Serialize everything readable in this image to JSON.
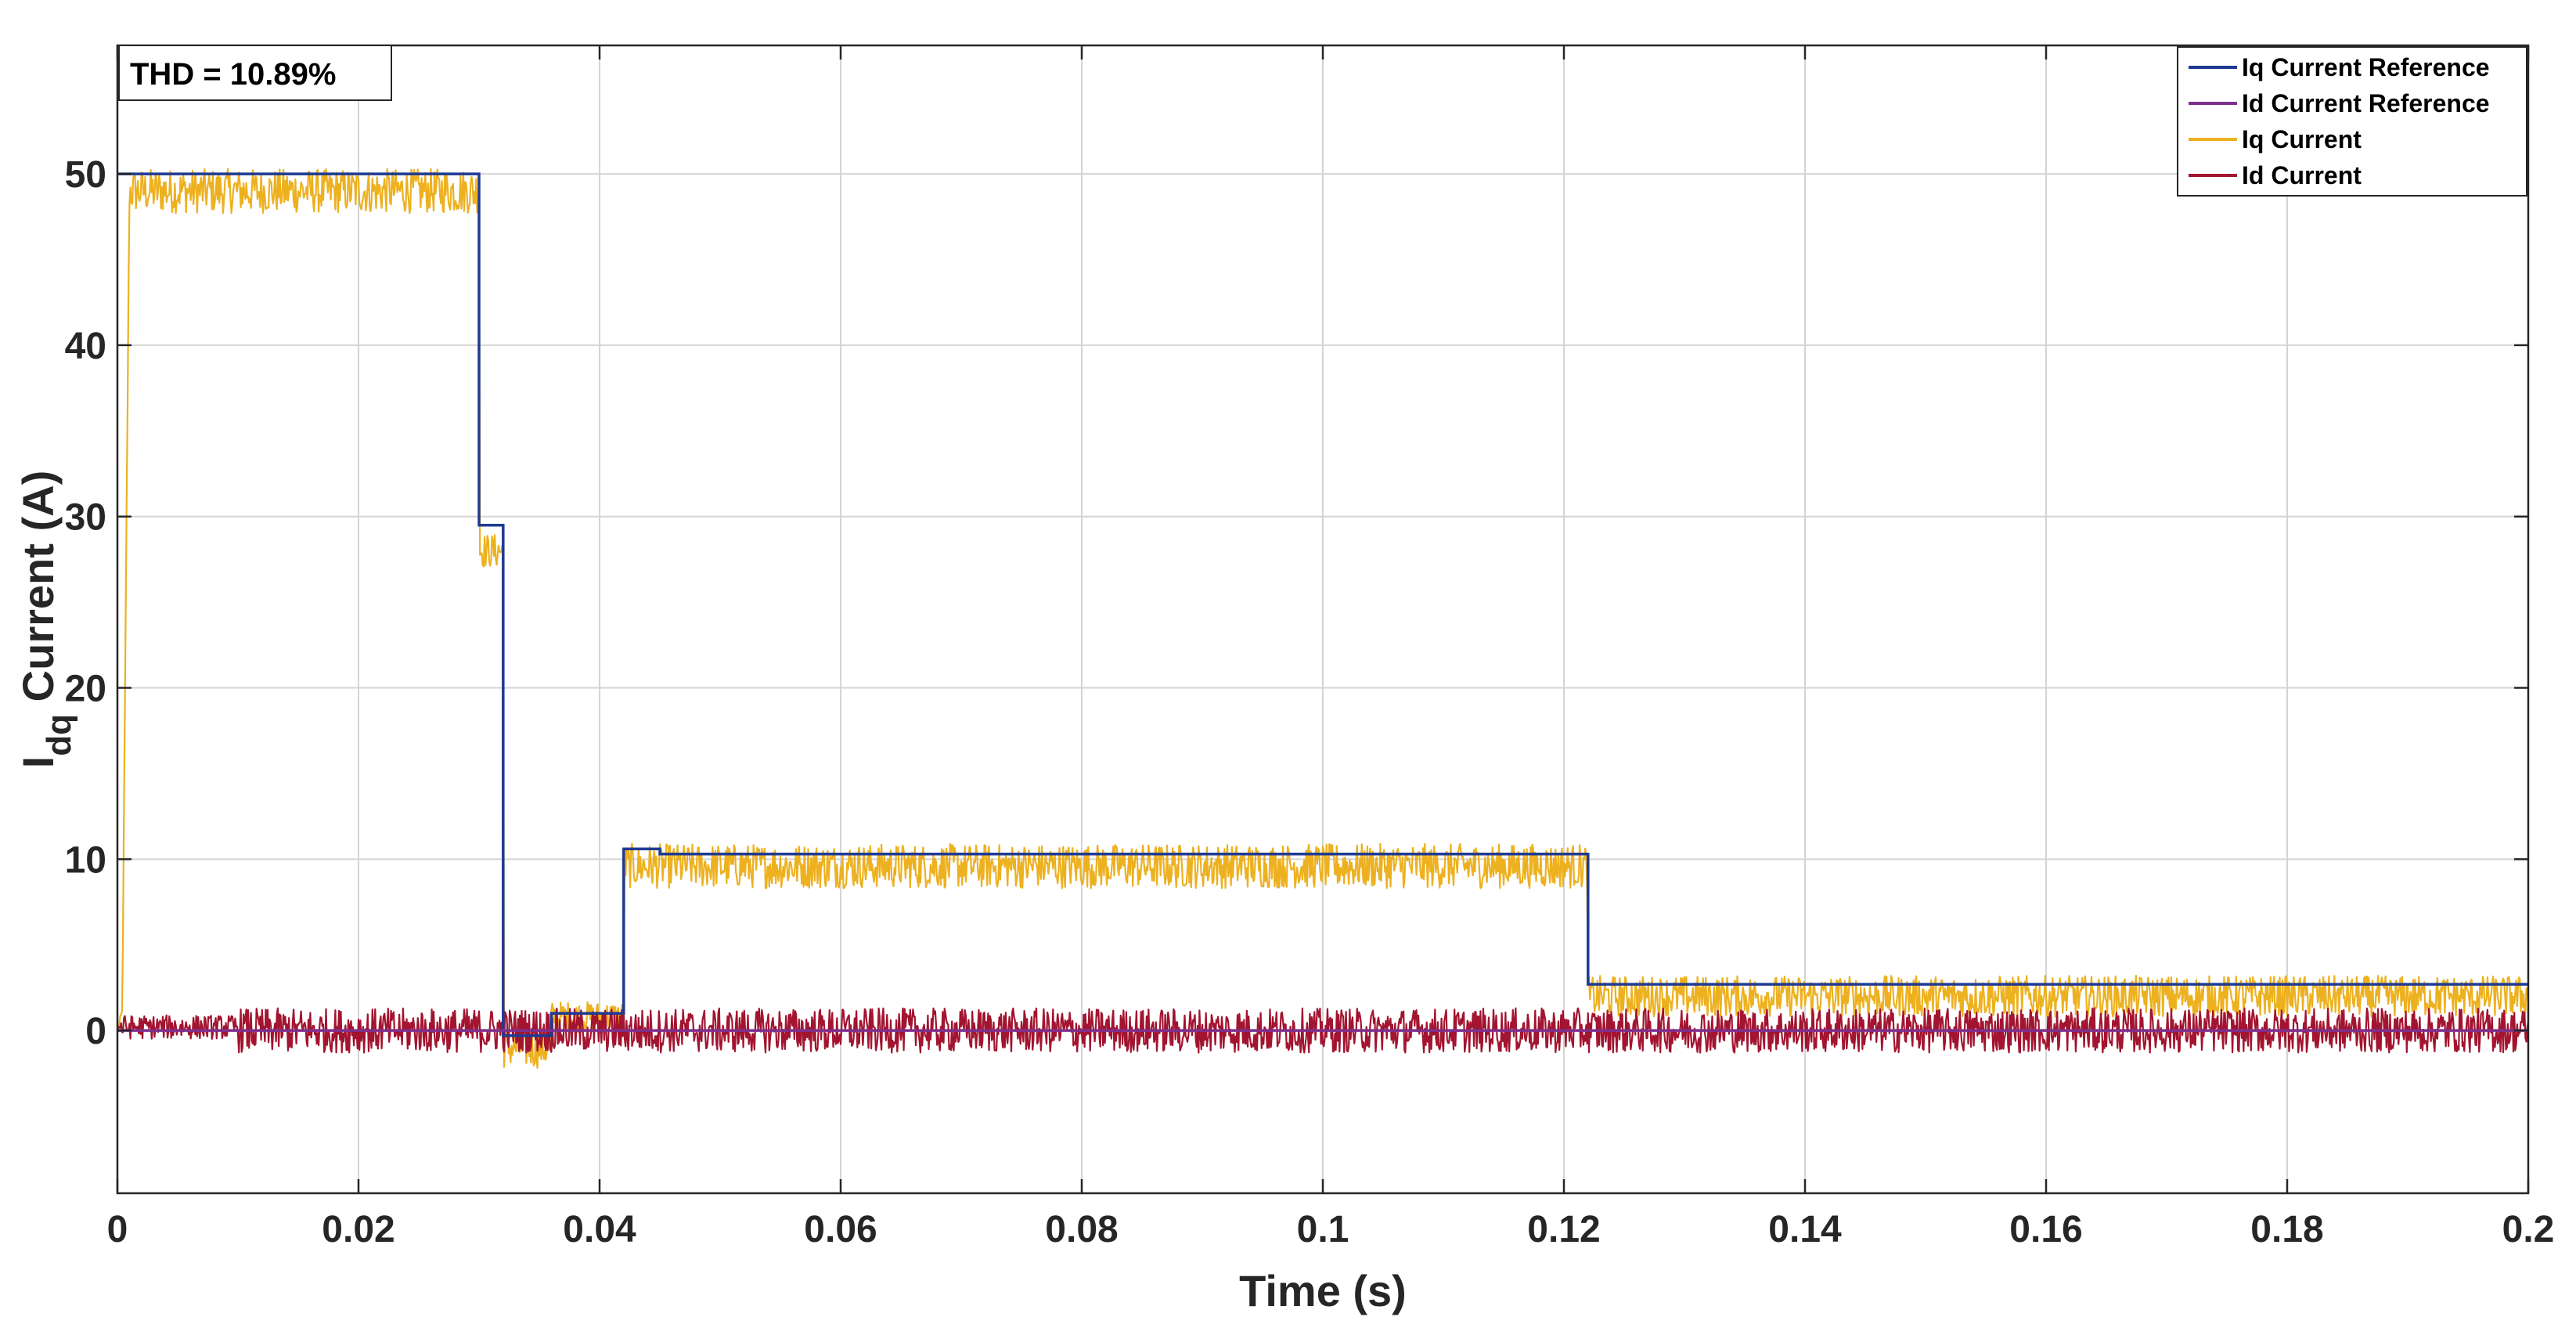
{
  "chart_data": {
    "type": "line",
    "title": "",
    "xlabel": "Time (s)",
    "ylabel": {
      "base": "I",
      "subscript": "dq",
      "rest": " Current (A)"
    },
    "xlim": [
      0,
      0.2
    ],
    "ylim": [
      -9.5,
      57.5
    ],
    "grid": true,
    "legend_position": "top-right",
    "x_ticks": [
      0,
      0.02,
      0.04,
      0.06,
      0.08,
      0.1,
      0.12,
      0.14,
      0.16,
      0.18,
      0.2
    ],
    "x_tick_labels": [
      "0",
      "0.02",
      "0.04",
      "0.06",
      "0.08",
      "0.1",
      "0.12",
      "0.14",
      "0.16",
      "0.18",
      "0.2"
    ],
    "y_ticks": [
      0,
      10,
      20,
      30,
      40,
      50
    ],
    "y_tick_labels": [
      "0",
      "10",
      "20",
      "30",
      "40",
      "50"
    ],
    "annotation": "THD = 10.89%",
    "series": [
      {
        "name": "Iq Current Reference",
        "color": "#1f3a93",
        "style": "step",
        "x": [
          0,
          0.03,
          0.03,
          0.032,
          0.032,
          0.036,
          0.036,
          0.042,
          0.042,
          0.045,
          0.045,
          0.122,
          0.122,
          0.2
        ],
        "y": [
          50,
          50,
          29.5,
          29.5,
          -0.3,
          -0.3,
          1.0,
          1.0,
          10.6,
          10.6,
          10.3,
          10.3,
          2.7,
          2.7
        ]
      },
      {
        "name": "Id Current Reference",
        "color": "#7e2f8e",
        "style": "step",
        "x": [
          0,
          0.2
        ],
        "y": [
          0,
          0
        ]
      },
      {
        "name": "Iq Current",
        "color": "#edb120",
        "style": "band",
        "x": [
          0,
          0.0004,
          0.001,
          0.03,
          0.03,
          0.032,
          0.032,
          0.036,
          0.036,
          0.042,
          0.042,
          0.122,
          0.122,
          0.2
        ],
        "y": [
          0,
          1,
          49,
          49,
          28,
          28,
          -1,
          -1,
          0.8,
          0.8,
          9.6,
          9.6,
          2.0,
          2.0
        ],
        "ripple": [
          0,
          0.5,
          1.3,
          1.3,
          1.0,
          1.0,
          1.2,
          1.2,
          0.9,
          0.9,
          1.3,
          1.3,
          1.2,
          1.2
        ]
      },
      {
        "name": "Id Current",
        "color": "#a2142f",
        "style": "band",
        "x": [
          0,
          0.01,
          0.01,
          0.2
        ],
        "y": [
          0.2,
          0.2,
          0,
          0
        ],
        "ripple": [
          0.7,
          0.7,
          1.3,
          1.3
        ]
      }
    ]
  }
}
